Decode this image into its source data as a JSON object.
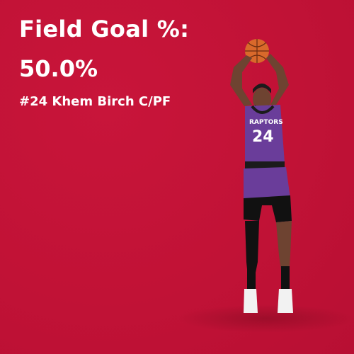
{
  "stat": {
    "label": "Field Goal %:",
    "value": "50.0%"
  },
  "player": {
    "name_line": "#24 Khem Birch C/PF",
    "jersey_text": "RAPTORS",
    "jersey_number": "24"
  },
  "colors": {
    "background": "#c11236",
    "text": "#ffffff",
    "jersey": "#6a3d9a",
    "shorts": "#111111"
  }
}
